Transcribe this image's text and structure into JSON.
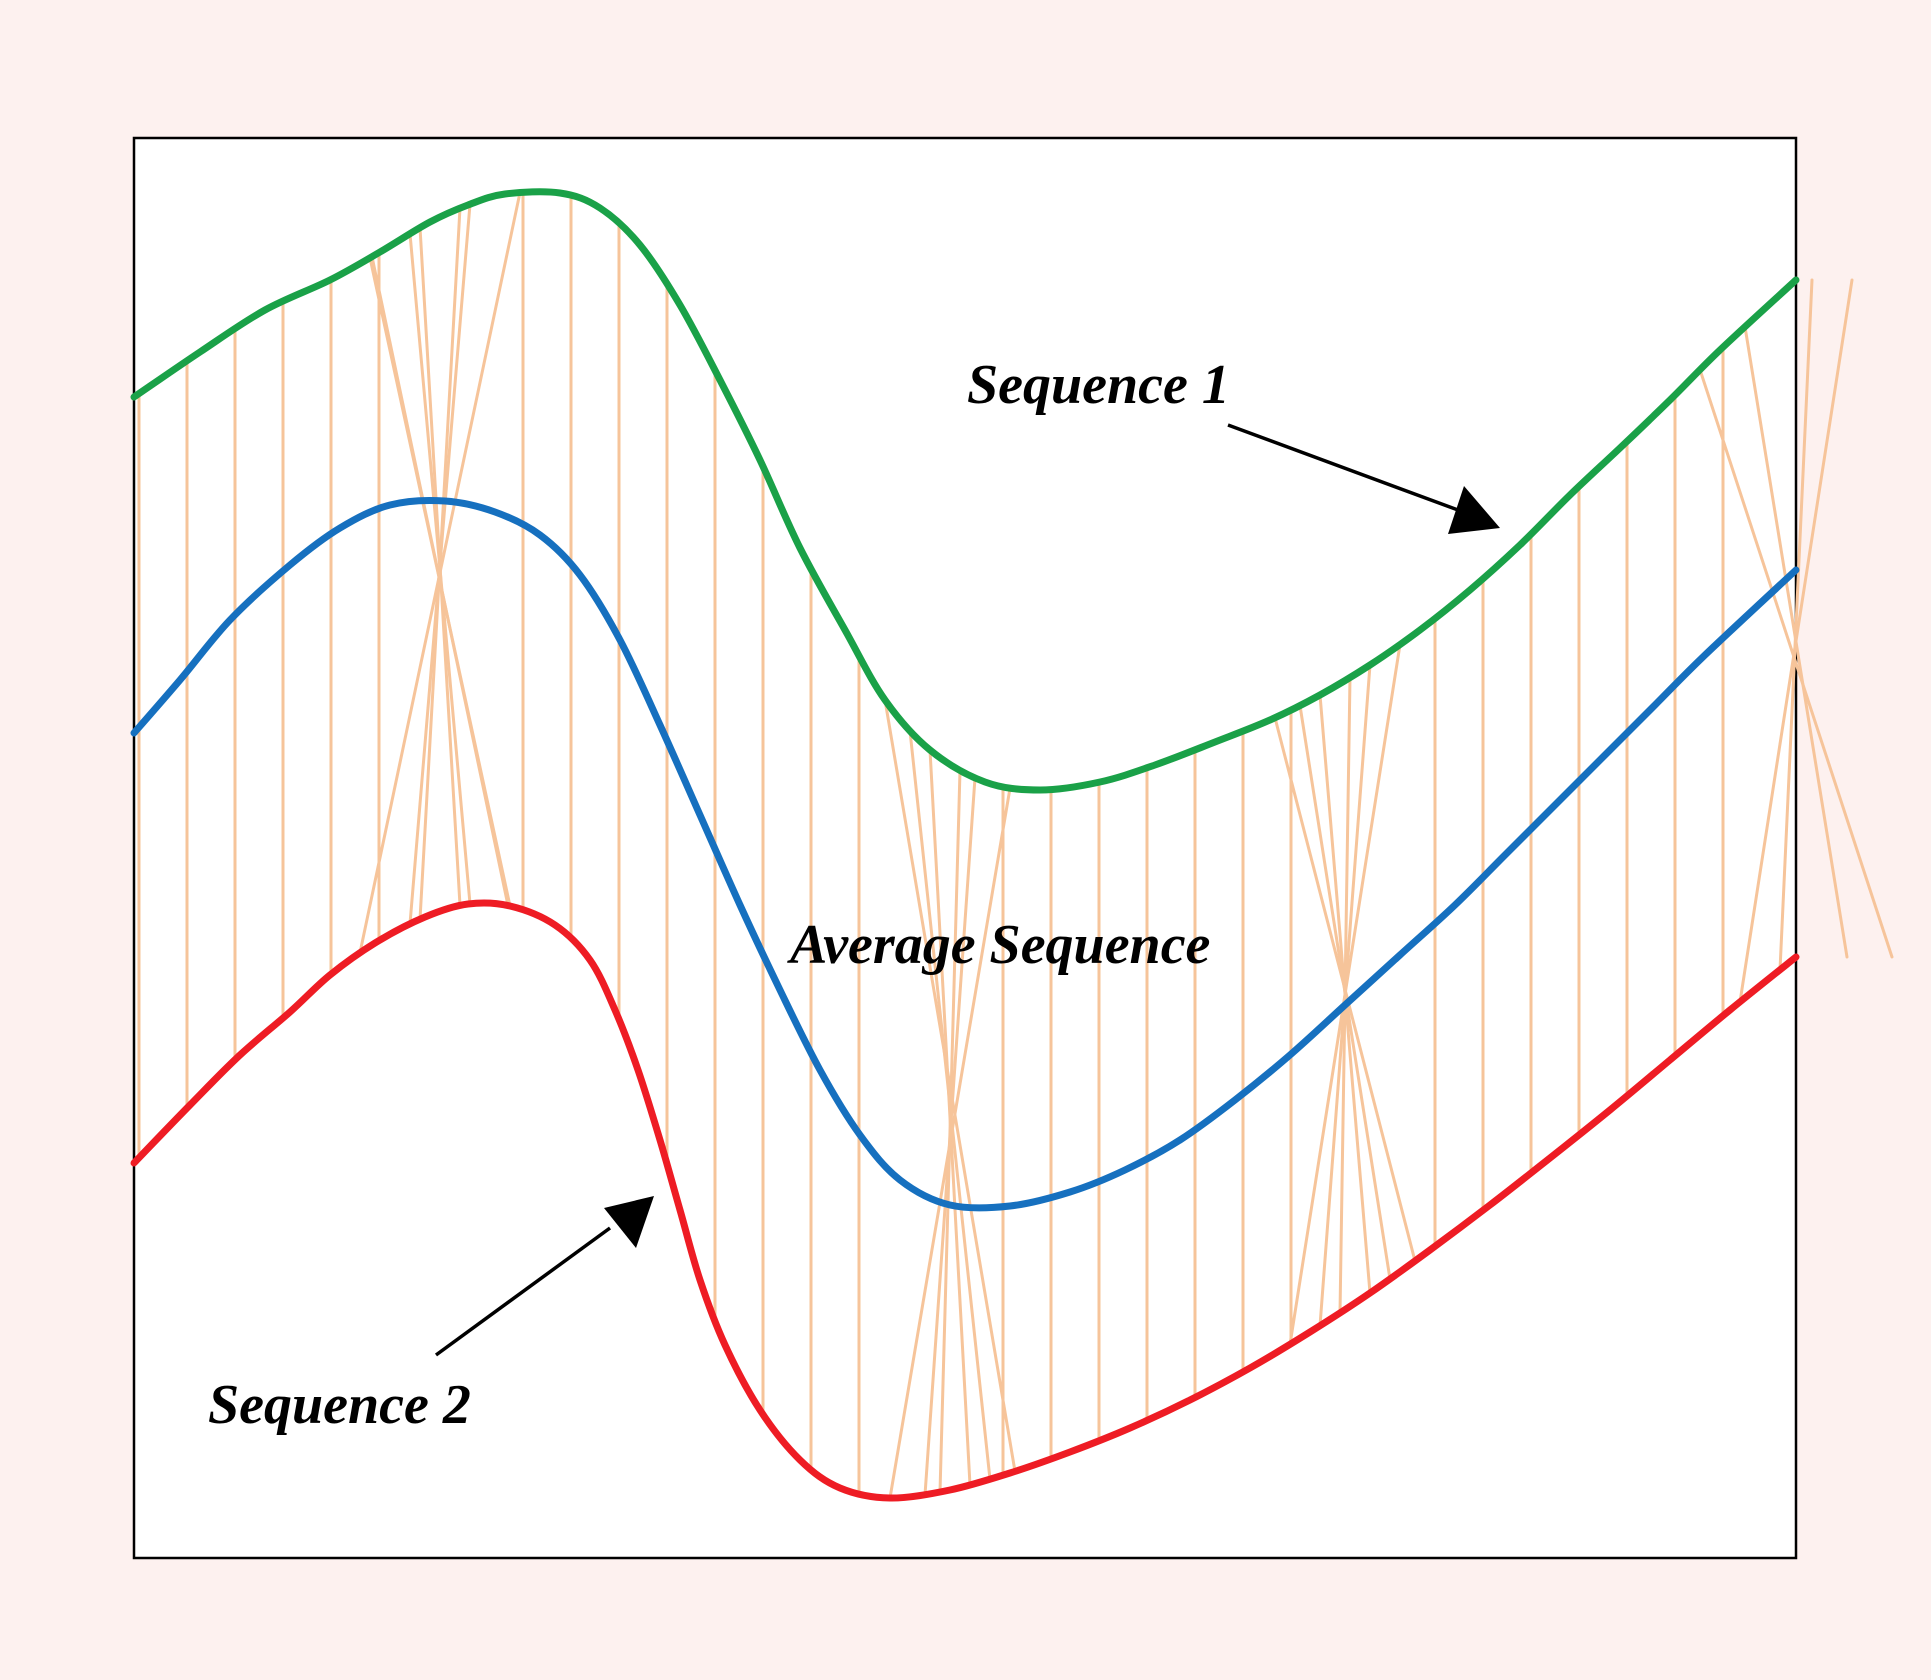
{
  "labels": {
    "sequence_1": "Sequence 1",
    "sequence_2": "Sequence 2",
    "average_sequence": "Average Sequence"
  },
  "colors": {
    "background": "#fdf1ef",
    "panel": "#ffffff",
    "frame": "#000000",
    "sequence_1": "#1aa148",
    "average_sequence": "#1670bf",
    "sequence_2": "#ee1c24",
    "alignment_links": "#f6c49a",
    "arrows": "#000000"
  }
}
